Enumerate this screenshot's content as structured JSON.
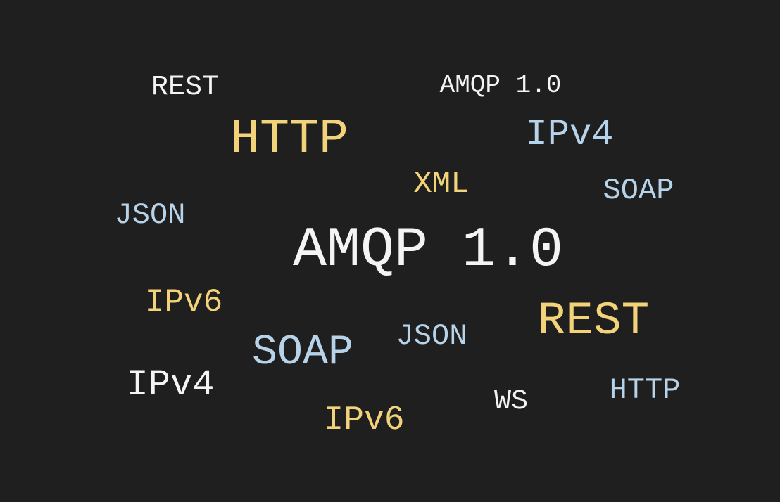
{
  "colors": {
    "background": "#1f1f1f",
    "white": "#f4f4f4",
    "gold": "#f2d37a",
    "blue": "#b7d3ea"
  },
  "words": [
    {
      "text": "REST",
      "color": "white"
    },
    {
      "text": "AMQP 1.0",
      "color": "white"
    },
    {
      "text": "HTTP",
      "color": "gold"
    },
    {
      "text": "IPv4",
      "color": "blue"
    },
    {
      "text": "XML",
      "color": "gold"
    },
    {
      "text": "SOAP",
      "color": "blue"
    },
    {
      "text": "JSON",
      "color": "blue"
    },
    {
      "text": "AMQP 1.0",
      "color": "white"
    },
    {
      "text": "IPv6",
      "color": "gold"
    },
    {
      "text": "REST",
      "color": "gold"
    },
    {
      "text": "SOAP",
      "color": "blue"
    },
    {
      "text": "JSON",
      "color": "blue"
    },
    {
      "text": "IPv4",
      "color": "white"
    },
    {
      "text": "HTTP",
      "color": "blue"
    },
    {
      "text": "WS",
      "color": "white"
    },
    {
      "text": "IPv6",
      "color": "gold"
    }
  ]
}
